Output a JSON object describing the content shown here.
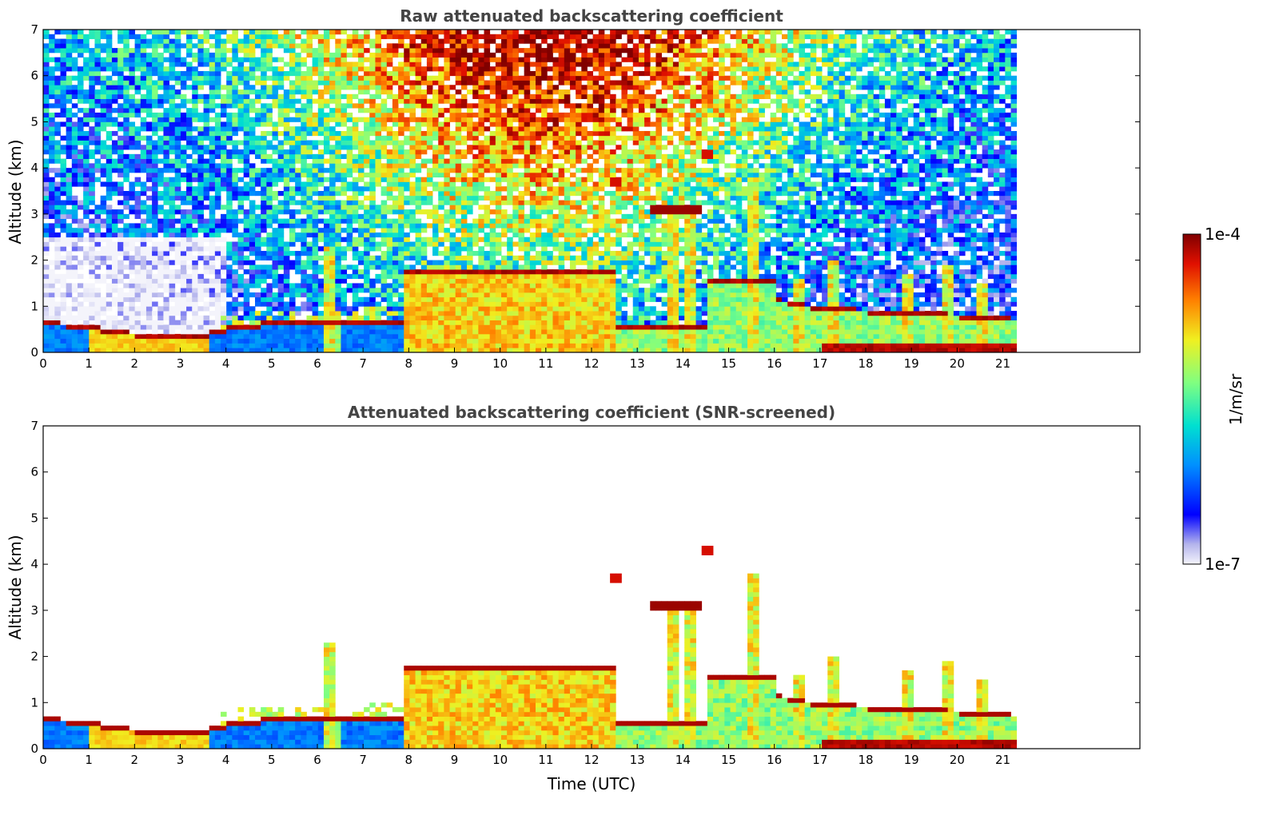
{
  "chart_data": [
    {
      "type": "heatmap",
      "title": "Raw attenuated backscattering coefficient",
      "xlabel": "",
      "ylabel": "Altitude (km)",
      "xlim": [
        0,
        24
      ],
      "ylim": [
        0,
        7
      ],
      "xticks": [
        0,
        1,
        2,
        3,
        4,
        5,
        6,
        7,
        8,
        9,
        10,
        11,
        12,
        13,
        14,
        15,
        16,
        17,
        18,
        19,
        20,
        21
      ],
      "yticks": [
        0,
        1,
        2,
        3,
        4,
        5,
        6,
        7
      ],
      "data_end_time": 21.3,
      "screened": false,
      "features": [
        {
          "name": "boundary layer top",
          "time": [
            0,
            1,
            2,
            3,
            3.6,
            4.2,
            5,
            6,
            7,
            7.9
          ],
          "altitude": [
            0.58,
            0.52,
            0.35,
            0.3,
            0.35,
            0.5,
            0.58,
            0.6,
            0.6,
            0.62
          ]
        },
        {
          "name": "elevated aerosol layer",
          "time": [
            8,
            9,
            10,
            11,
            12,
            12.5
          ],
          "altitude": [
            1.75,
            1.65,
            1.6,
            1.7,
            1.65,
            1.6
          ]
        },
        {
          "name": "cloud",
          "time": [
            13.5,
            14.2,
            15,
            16,
            17,
            18,
            19,
            20,
            21
          ],
          "altitude": [
            3.1,
            3.2,
            1.5,
            1.1,
            0.9,
            0.85,
            0.8,
            0.75,
            0.7
          ]
        }
      ]
    },
    {
      "type": "heatmap",
      "title": "Attenuated backscattering coefficient (SNR-screened)",
      "xlabel": "Time (UTC)",
      "ylabel": "Altitude (km)",
      "xlim": [
        0,
        24
      ],
      "ylim": [
        0,
        7
      ],
      "xticks": [
        0,
        1,
        2,
        3,
        4,
        5,
        6,
        7,
        8,
        9,
        10,
        11,
        12,
        13,
        14,
        15,
        16,
        17,
        18,
        19,
        20,
        21
      ],
      "yticks": [
        0,
        1,
        2,
        3,
        4,
        5,
        6,
        7
      ],
      "data_end_time": 21.3,
      "screened": true
    }
  ],
  "colorbar": {
    "label": "1/m/sr",
    "max_label": "1e-4",
    "min_label": "1e-7",
    "colormap": [
      "#f4f4fb",
      "#b4b4ec",
      "#0000ff",
      "#0090ff",
      "#00e0d0",
      "#80ff80",
      "#f0f020",
      "#ff8000",
      "#e01000",
      "#800000"
    ]
  }
}
